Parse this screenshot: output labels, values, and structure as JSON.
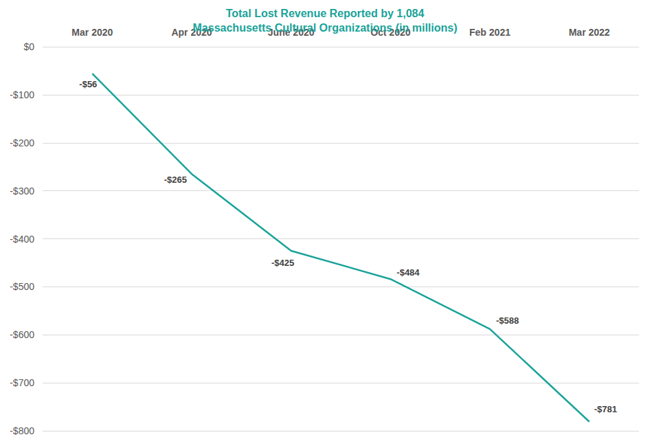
{
  "chart_data": {
    "type": "line",
    "title": "Total Lost Revenue Reported by 1,084\nMassachusetts Cultural Organizations (in millions)",
    "categories": [
      "Mar 2020",
      "Apr 2020",
      "June 2020",
      "Oct 2020",
      "Feb 2021",
      "Mar 2022"
    ],
    "values": [
      -56,
      -265,
      -425,
      -484,
      -588,
      -781
    ],
    "value_labels": [
      "-$56",
      "-$265",
      "-$425",
      "-$484",
      "-$588",
      "-$781"
    ],
    "color": "#1aa39a",
    "ylim": [
      -800,
      0
    ],
    "yticks": [
      {
        "value": 0,
        "label": "$0"
      },
      {
        "value": -100,
        "label": "-$100"
      },
      {
        "value": -200,
        "label": "-$200"
      },
      {
        "value": -300,
        "label": "-$300"
      },
      {
        "value": -400,
        "label": "-$400"
      },
      {
        "value": -500,
        "label": "-$500"
      },
      {
        "value": -600,
        "label": "-$600"
      },
      {
        "value": -700,
        "label": "-$700"
      },
      {
        "value": -800,
        "label": "-$800"
      }
    ],
    "grid": true,
    "data_labels": true
  }
}
